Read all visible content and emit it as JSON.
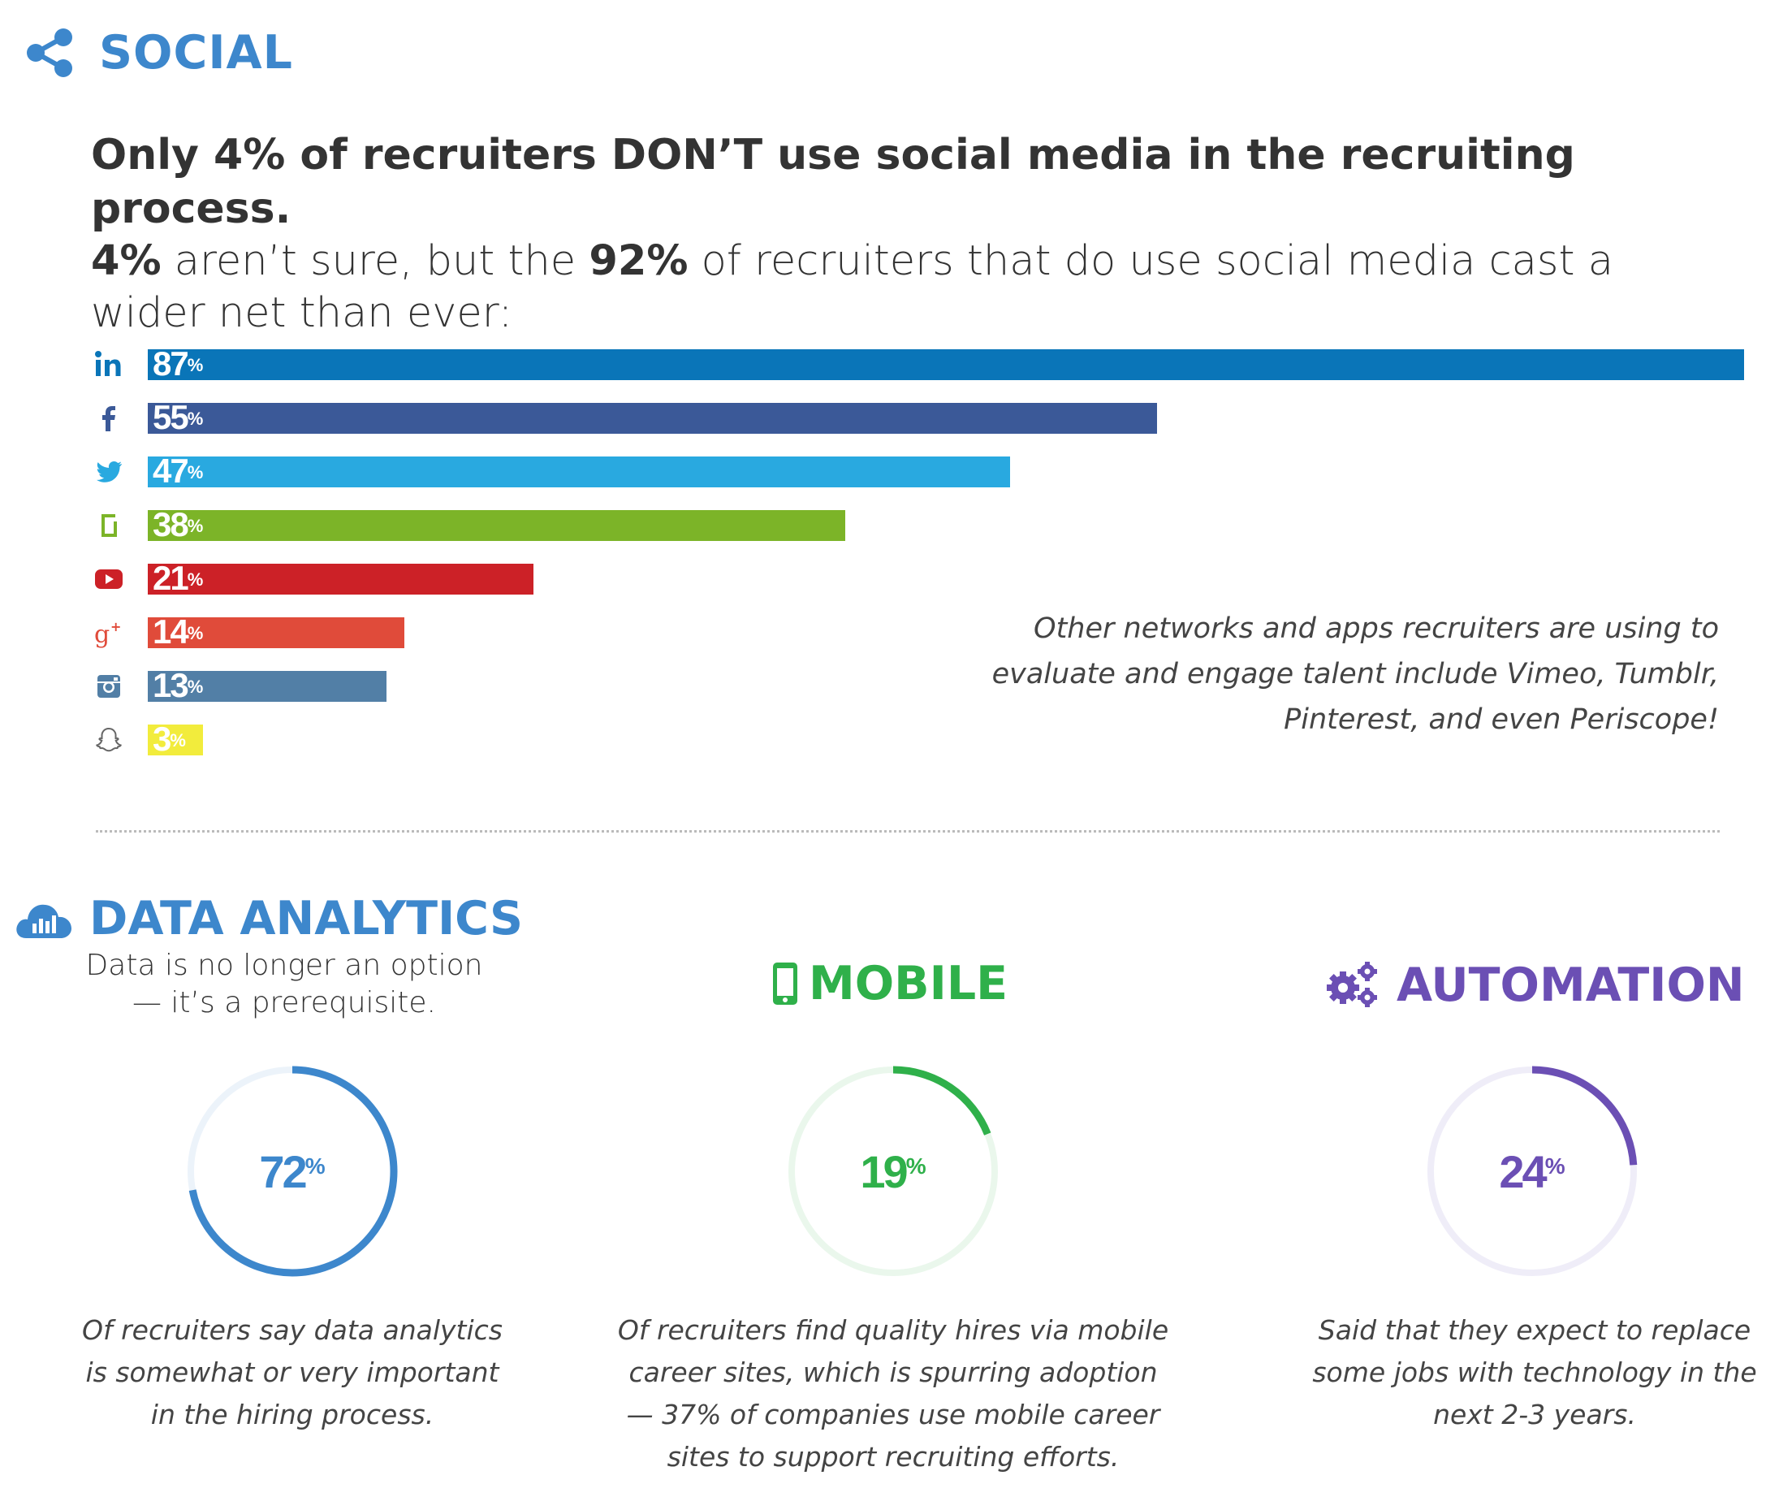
{
  "social": {
    "title": "SOCIAL",
    "headline_main": "Only 4% of recruiters DON’T use social media in the recruiting process.",
    "headline_sub_bold1": "4%",
    "headline_sub_text1": " aren’t sure, but the ",
    "headline_sub_bold2": "92%",
    "headline_sub_text2": " of recruiters that do use social media cast a wider net than ever:",
    "other_networks": "Other networks and apps recruiters are using to evaluate and engage talent include Vimeo, Tumblr, Pinterest, and even Periscope!"
  },
  "chart_data": {
    "type": "bar",
    "orientation": "horizontal",
    "categories": [
      "linkedin-icon",
      "facebook-icon",
      "twitter-icon",
      "glassdoor-icon",
      "youtube-icon",
      "googleplus-icon",
      "instagram-icon",
      "snapchat-icon"
    ],
    "values": [
      87,
      55,
      47,
      38,
      21,
      14,
      13,
      3
    ],
    "value_labels": [
      "87",
      "55",
      "47",
      "38",
      "21",
      "14",
      "13",
      "3"
    ],
    "unit": "%",
    "colors": [
      "#0a75b8",
      "#3b5998",
      "#29a9e0",
      "#7cb428",
      "#cc2127",
      "#e04b3a",
      "#527fa6",
      "#f2ec3c"
    ],
    "xlim": [
      0,
      87
    ]
  },
  "analytics": {
    "title": "DATA ANALYTICS",
    "subtitle": "Data is no longer an option — it’s a prerequisite.",
    "value": 72,
    "value_text": "72",
    "unit": "%",
    "caption": "Of recruiters say data analytics is somewhat or very important in the hiring process.",
    "color": "#3d87cc",
    "track_color": "#ecf3fa"
  },
  "mobile": {
    "title": "MOBILE",
    "value": 19,
    "value_text": "19",
    "unit": "%",
    "caption": "Of recruiters find quality hires via mobile career sites, which is spurring adoption  — 37% of companies use mobile career sites to support recruiting efforts.",
    "color": "#2fb04a",
    "track_color": "#eaf7ec"
  },
  "automation": {
    "title": "AUTOMATION",
    "value": 24,
    "value_text": "24",
    "unit": "%",
    "caption": "Said that they expect to replace some jobs with technology in the next 2-3 years.",
    "color": "#6b4fb4",
    "track_color": "#efedf8"
  }
}
